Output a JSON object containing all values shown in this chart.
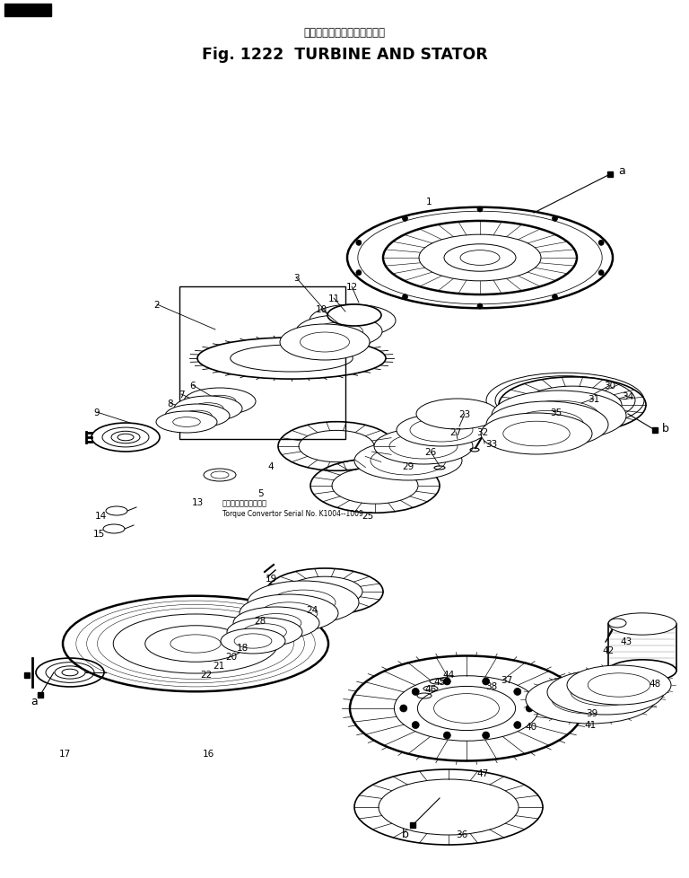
{
  "title_japanese": "タービン　および　ステータ",
  "title_english": "Fig. 1222  TURBINE AND STATOR",
  "background_color": "#ffffff",
  "fig_width": 7.68,
  "fig_height": 9.79,
  "dpi": 100,
  "torque_text_ja": "トルクコンバータ号機",
  "torque_text_en": "Torque Convertor Serial No. K1004--1009"
}
